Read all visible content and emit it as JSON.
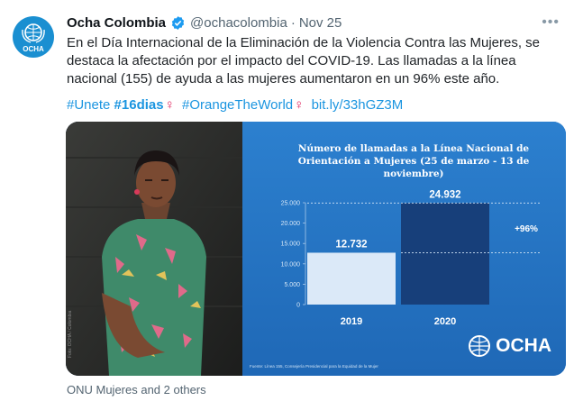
{
  "tweet": {
    "display_name": "Ocha Colombia",
    "handle": "@ochacolombia",
    "separator": "·",
    "date": "Nov 25",
    "avatar_text": "OCHA",
    "more_label": "•••",
    "text": "En el Día Internacional de la Eliminación de la Violencia Contra las Mujeres, se destaca la afectación por el impacto del COVID-19. Las llamadas a la línea nacional (155) de ayuda a las mujeres aumentaron en un 96% este año.",
    "hashtags": [
      {
        "text": "#Unete",
        "bold": false
      },
      {
        "text": "#16dias",
        "bold": true
      },
      {
        "text": "#OrangeTheWorld",
        "bold": false
      }
    ],
    "venus_symbol": "♀",
    "link": "bit.ly/33hGZ3M",
    "footer": "ONU Mujeres and 2 others"
  },
  "media": {
    "logo_text": "OCHA",
    "source_text": "Fuente: Línea 155, Consejería Presidencial para la Equidad de la Mujer",
    "photo_credit": "Foto: OCHA / Colombia"
  },
  "chart_data": {
    "type": "bar",
    "title": "Número de llamadas a la Línea Nacional de Orientación a Mujeres (25 de marzo - 13 de noviembre)",
    "categories": [
      "2019",
      "2020"
    ],
    "values": [
      12732,
      24932
    ],
    "value_labels": [
      "12.732",
      "24.932"
    ],
    "annotation": "+96%",
    "ylim": [
      0,
      25000
    ],
    "yticks": [
      0,
      5000,
      10000,
      15000,
      20000,
      25000
    ],
    "ytick_labels": [
      "0",
      "5.000",
      "10.000",
      "15.000",
      "20.000",
      "25.000"
    ],
    "colors": {
      "bar_2019": "#dbe9f8",
      "bar_2020": "#173f7a",
      "background": "#2777c8"
    },
    "grid": false
  }
}
